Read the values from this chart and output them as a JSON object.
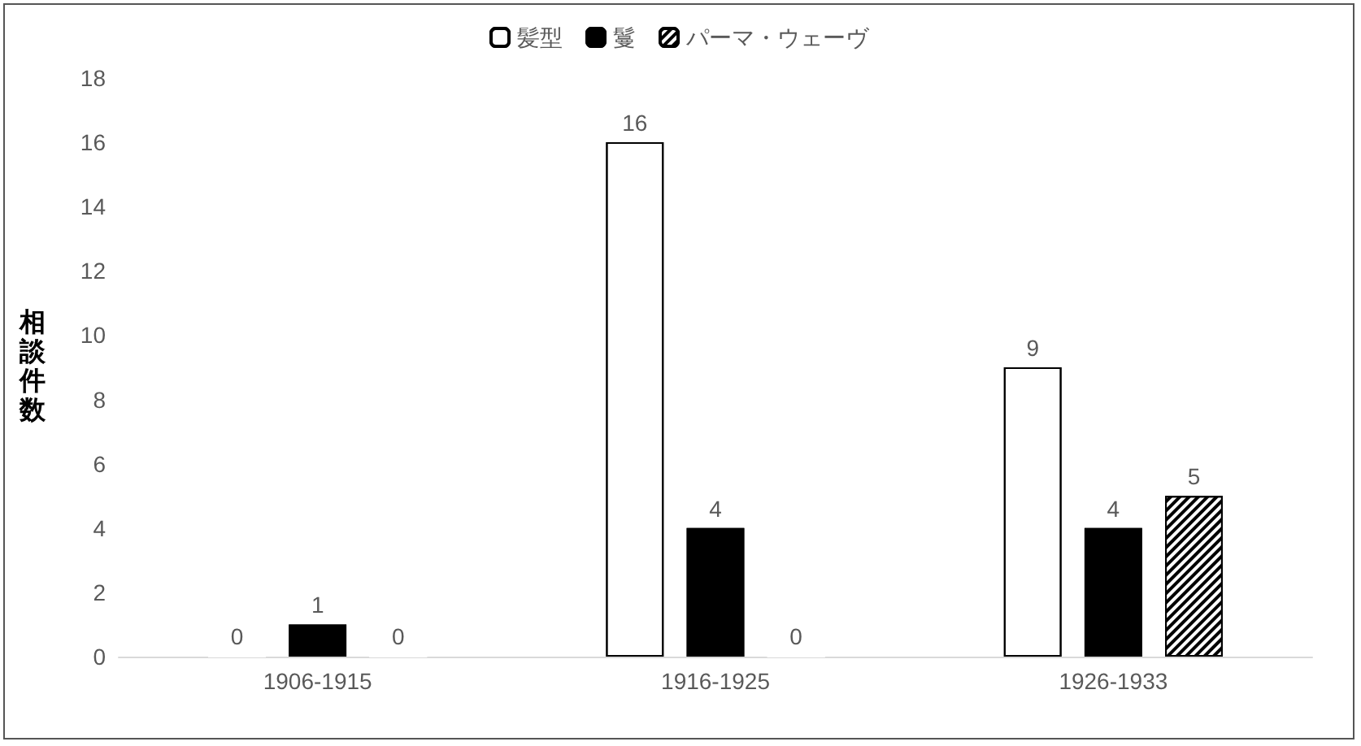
{
  "chart_data": {
    "type": "bar",
    "categories": [
      "1906-1915",
      "1916-1925",
      "1926-1933"
    ],
    "ylabel": "相談件数",
    "series": [
      {
        "name": "髪型",
        "color": "#ffffff",
        "values": [
          0,
          16,
          9
        ]
      },
      {
        "name": "鬘",
        "color": "#000000",
        "values": [
          1,
          4,
          4
        ]
      },
      {
        "name": "パーマ・ウェーヴ",
        "color": "#ffffff",
        "values": [
          0,
          0,
          5
        ]
      }
    ],
    "ylim": [
      0,
      18
    ],
    "yticks": [
      0,
      2,
      4,
      6,
      8,
      10,
      12,
      14,
      16,
      18
    ],
    "grid": false,
    "legend": "top",
    "data_labels": true
  }
}
